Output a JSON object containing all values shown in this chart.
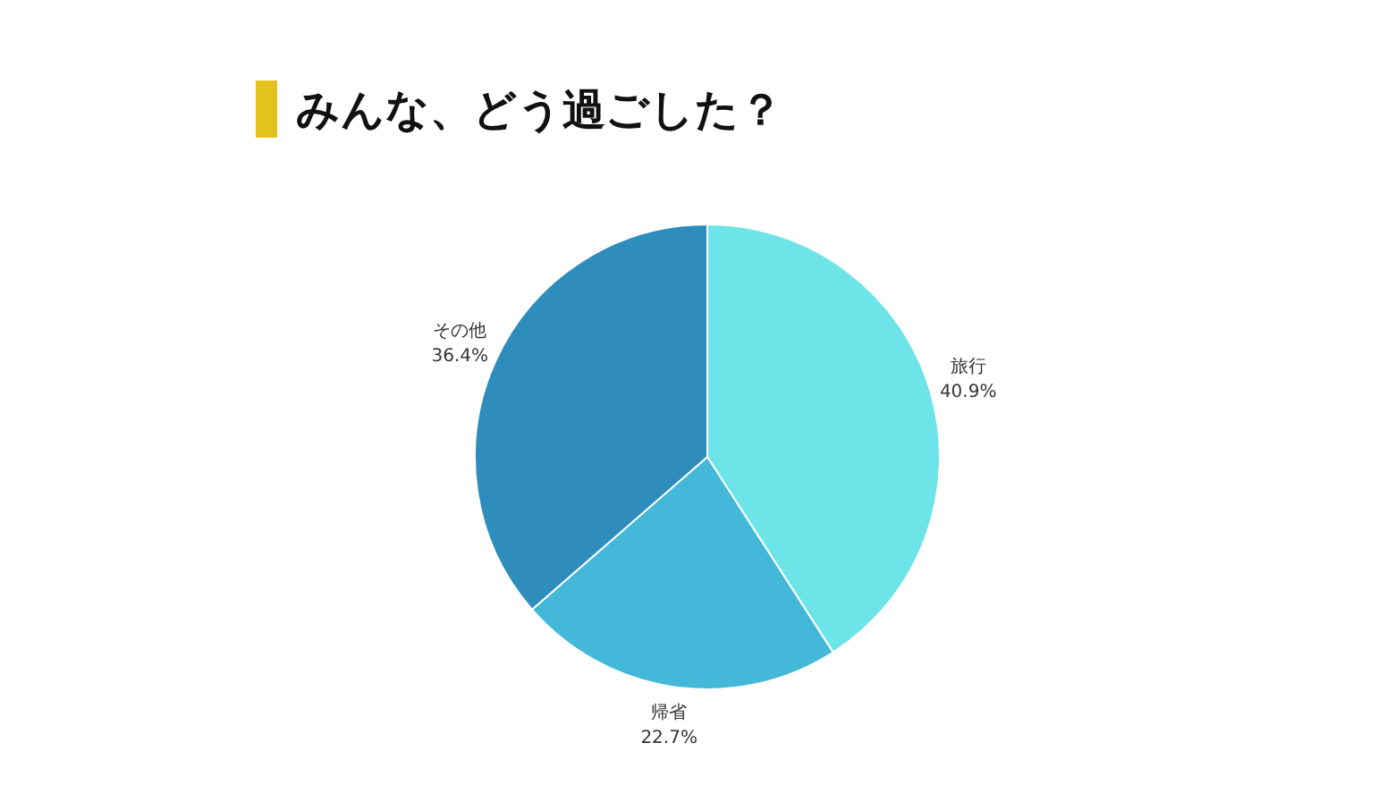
{
  "chart_data": {
    "type": "pie",
    "title": "みんな、どう過ごした？",
    "categories": [
      "旅行",
      "帰省",
      "その他"
    ],
    "values": [
      40.9,
      22.7,
      36.4
    ],
    "colors": [
      "#6ce4e8",
      "#44b8d8",
      "#2e8dbd"
    ],
    "value_labels": [
      "40.9%",
      "22.7%",
      "36.4%"
    ]
  }
}
